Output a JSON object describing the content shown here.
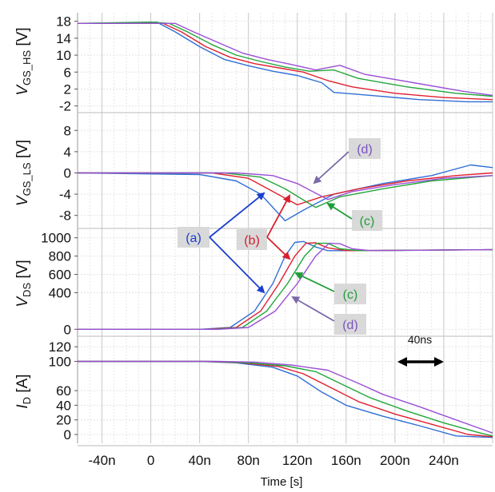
{
  "colors": {
    "a": "#2f6fd6",
    "b": "#e02030",
    "c": "#22a63a",
    "d": "#9a4fd6",
    "annotation_box": "#d9d9d9",
    "arrow_d": "#7b6aa8"
  },
  "chart_data": {
    "type": "line",
    "x_unit": "ns",
    "xlabel": "Time [s]",
    "x_ticks": [
      "-40n",
      "0",
      "40n",
      "80n",
      "120n",
      "160n",
      "200n",
      "240n"
    ],
    "x_tick_values": [
      -40,
      0,
      40,
      80,
      120,
      160,
      200,
      240
    ],
    "xlim": [
      -60,
      280
    ],
    "grid": true,
    "panels": [
      {
        "ylabel_main": "V",
        "ylabel_sub": "GS_HS",
        "ylabel_unit": "[V]",
        "y_ticks": [
          "18",
          "14",
          "10",
          "6",
          "2",
          "-2"
        ],
        "y_tick_values": [
          18,
          14,
          10,
          6,
          2,
          -2
        ],
        "ylim": [
          -3,
          20
        ],
        "series": [
          {
            "key": "a",
            "points": [
              [
                -60,
                17.5
              ],
              [
                -10,
                17.5
              ],
              [
                5,
                17.8
              ],
              [
                20,
                15.5
              ],
              [
                40,
                12
              ],
              [
                60,
                9
              ],
              [
                80,
                7.5
              ],
              [
                100,
                6.2
              ],
              [
                120,
                5.2
              ],
              [
                140,
                3.5
              ],
              [
                150,
                1.2
              ],
              [
                180,
                0.5
              ],
              [
                220,
                -0.5
              ],
              [
                260,
                -1
              ],
              [
                280,
                -1
              ]
            ]
          },
          {
            "key": "b",
            "points": [
              [
                -60,
                17.5
              ],
              [
                -5,
                17.5
              ],
              [
                10,
                17.5
              ],
              [
                25,
                15.5
              ],
              [
                45,
                12
              ],
              [
                65,
                9.5
              ],
              [
                85,
                8
              ],
              [
                105,
                7
              ],
              [
                125,
                6
              ],
              [
                145,
                4
              ],
              [
                165,
                2.5
              ],
              [
                200,
                1
              ],
              [
                240,
                0
              ],
              [
                280,
                -0.5
              ]
            ]
          },
          {
            "key": "c",
            "points": [
              [
                -60,
                17.5
              ],
              [
                0,
                17.8
              ],
              [
                15,
                17.5
              ],
              [
                30,
                15.5
              ],
              [
                50,
                12.5
              ],
              [
                70,
                10
              ],
              [
                90,
                8.5
              ],
              [
                110,
                7.2
              ],
              [
                130,
                6.2
              ],
              [
                150,
                6.5
              ],
              [
                170,
                4.5
              ],
              [
                210,
                2.5
              ],
              [
                250,
                1
              ],
              [
                280,
                0.3
              ]
            ]
          },
          {
            "key": "d",
            "points": [
              [
                -60,
                17.5
              ],
              [
                5,
                17.5
              ],
              [
                20,
                17.5
              ],
              [
                35,
                15.5
              ],
              [
                55,
                13
              ],
              [
                75,
                10.5
              ],
              [
                95,
                9
              ],
              [
                115,
                7.8
              ],
              [
                135,
                6.5
              ],
              [
                155,
                7.6
              ],
              [
                175,
                5.5
              ],
              [
                215,
                3.5
              ],
              [
                255,
                1.5
              ],
              [
                280,
                0.5
              ]
            ]
          }
        ]
      },
      {
        "ylabel_main": "V",
        "ylabel_sub": "GS_LS",
        "ylabel_unit": "[V]",
        "y_ticks": [
          "8",
          "4",
          "0",
          "-4",
          "-8"
        ],
        "y_tick_values": [
          8,
          4,
          0,
          -4,
          -8
        ],
        "ylim": [
          -10,
          10
        ],
        "series": [
          {
            "key": "a",
            "points": [
              [
                -60,
                0
              ],
              [
                40,
                -0.3
              ],
              [
                70,
                -1.5
              ],
              [
                90,
                -4
              ],
              [
                110,
                -9
              ],
              [
                125,
                -7
              ],
              [
                150,
                -4
              ],
              [
                190,
                -2
              ],
              [
                230,
                -0.5
              ],
              [
                262,
                1.5
              ],
              [
                280,
                1
              ]
            ]
          },
          {
            "key": "b",
            "points": [
              [
                -60,
                0
              ],
              [
                50,
                0
              ],
              [
                80,
                -1
              ],
              [
                100,
                -3.5
              ],
              [
                120,
                -6
              ],
              [
                140,
                -4.5
              ],
              [
                170,
                -3
              ],
              [
                210,
                -1.5
              ],
              [
                250,
                -0.5
              ],
              [
                280,
                0
              ]
            ]
          },
          {
            "key": "c",
            "points": [
              [
                -60,
                0
              ],
              [
                60,
                0
              ],
              [
                90,
                -0.8
              ],
              [
                110,
                -3
              ],
              [
                135,
                -6.5
              ],
              [
                155,
                -4.5
              ],
              [
                190,
                -3
              ],
              [
                230,
                -1.5
              ],
              [
                280,
                -0.5
              ]
            ]
          },
          {
            "key": "d",
            "points": [
              [
                -60,
                0
              ],
              [
                70,
                0
              ],
              [
                100,
                -0.5
              ],
              [
                120,
                -2
              ],
              [
                145,
                -5
              ],
              [
                165,
                -3.5
              ],
              [
                200,
                -2.2
              ],
              [
                240,
                -1
              ],
              [
                280,
                -0.5
              ]
            ]
          }
        ]
      },
      {
        "ylabel_main": "V",
        "ylabel_sub": "DS",
        "ylabel_unit": "[V]",
        "y_ticks": [
          "1000",
          "800",
          "600",
          "400",
          "0"
        ],
        "y_tick_values": [
          1000,
          800,
          600,
          400,
          0
        ],
        "ylim": [
          -50,
          1050
        ],
        "series": [
          {
            "key": "a",
            "points": [
              [
                -60,
                0
              ],
              [
                40,
                0
              ],
              [
                65,
                20
              ],
              [
                85,
                200
              ],
              [
                100,
                500
              ],
              [
                110,
                800
              ],
              [
                118,
                950
              ],
              [
                125,
                960
              ],
              [
                135,
                900
              ],
              [
                145,
                860
              ],
              [
                155,
                860
              ],
              [
                280,
                870
              ]
            ]
          },
          {
            "key": "b",
            "points": [
              [
                -60,
                0
              ],
              [
                45,
                0
              ],
              [
                70,
                20
              ],
              [
                90,
                200
              ],
              [
                105,
                500
              ],
              [
                118,
                800
              ],
              [
                127,
                940
              ],
              [
                135,
                945
              ],
              [
                145,
                890
              ],
              [
                160,
                860
              ],
              [
                280,
                870
              ]
            ]
          },
          {
            "key": "c",
            "points": [
              [
                -60,
                0
              ],
              [
                50,
                0
              ],
              [
                75,
                20
              ],
              [
                95,
                200
              ],
              [
                112,
                500
              ],
              [
                126,
                800
              ],
              [
                136,
                940
              ],
              [
                145,
                940
              ],
              [
                155,
                880
              ],
              [
                170,
                860
              ],
              [
                280,
                870
              ]
            ]
          },
          {
            "key": "d",
            "points": [
              [
                -60,
                0
              ],
              [
                55,
                0
              ],
              [
                80,
                20
              ],
              [
                102,
                200
              ],
              [
                120,
                500
              ],
              [
                135,
                800
              ],
              [
                146,
                940
              ],
              [
                155,
                935
              ],
              [
                165,
                880
              ],
              [
                180,
                860
              ],
              [
                280,
                870
              ]
            ]
          }
        ]
      },
      {
        "ylabel_main": "I",
        "ylabel_sub": "D",
        "ylabel_unit": "[A]",
        "y_ticks": [
          "120",
          "100",
          "60",
          "40",
          "20",
          "0"
        ],
        "y_tick_values": [
          120,
          100,
          60,
          40,
          20,
          0
        ],
        "ylim": [
          -12,
          130
        ],
        "series": [
          {
            "key": "a",
            "points": [
              [
                -60,
                100
              ],
              [
                40,
                100
              ],
              [
                70,
                98
              ],
              [
                100,
                92
              ],
              [
                120,
                80
              ],
              [
                140,
                58
              ],
              [
                160,
                40
              ],
              [
                190,
                25
              ],
              [
                220,
                12
              ],
              [
                250,
                -2
              ],
              [
                280,
                -4
              ]
            ]
          },
          {
            "key": "b",
            "points": [
              [
                -60,
                100
              ],
              [
                45,
                100
              ],
              [
                75,
                98
              ],
              [
                105,
                93
              ],
              [
                125,
                83
              ],
              [
                150,
                62
              ],
              [
                170,
                45
              ],
              [
                200,
                28
              ],
              [
                230,
                14
              ],
              [
                260,
                0
              ],
              [
                280,
                -3
              ]
            ]
          },
          {
            "key": "c",
            "points": [
              [
                -60,
                100
              ],
              [
                50,
                100
              ],
              [
                80,
                98
              ],
              [
                110,
                94
              ],
              [
                135,
                86
              ],
              [
                160,
                66
              ],
              [
                180,
                50
              ],
              [
                210,
                32
              ],
              [
                240,
                16
              ],
              [
                270,
                2
              ],
              [
                280,
                -2
              ]
            ]
          },
          {
            "key": "d",
            "points": [
              [
                -60,
                100
              ],
              [
                55,
                100
              ],
              [
                85,
                99
              ],
              [
                115,
                95
              ],
              [
                145,
                88
              ],
              [
                170,
                70
              ],
              [
                190,
                55
              ],
              [
                220,
                38
              ],
              [
                250,
                20
              ],
              [
                275,
                5
              ],
              [
                280,
                2
              ]
            ]
          }
        ]
      }
    ],
    "annotations": {
      "a": "(a)",
      "b": "(b)",
      "c_top": "(c)",
      "c_bottom": "(c)",
      "d_top": "(d)",
      "d_bottom": "(d)",
      "scale_bar": "40ns"
    }
  }
}
